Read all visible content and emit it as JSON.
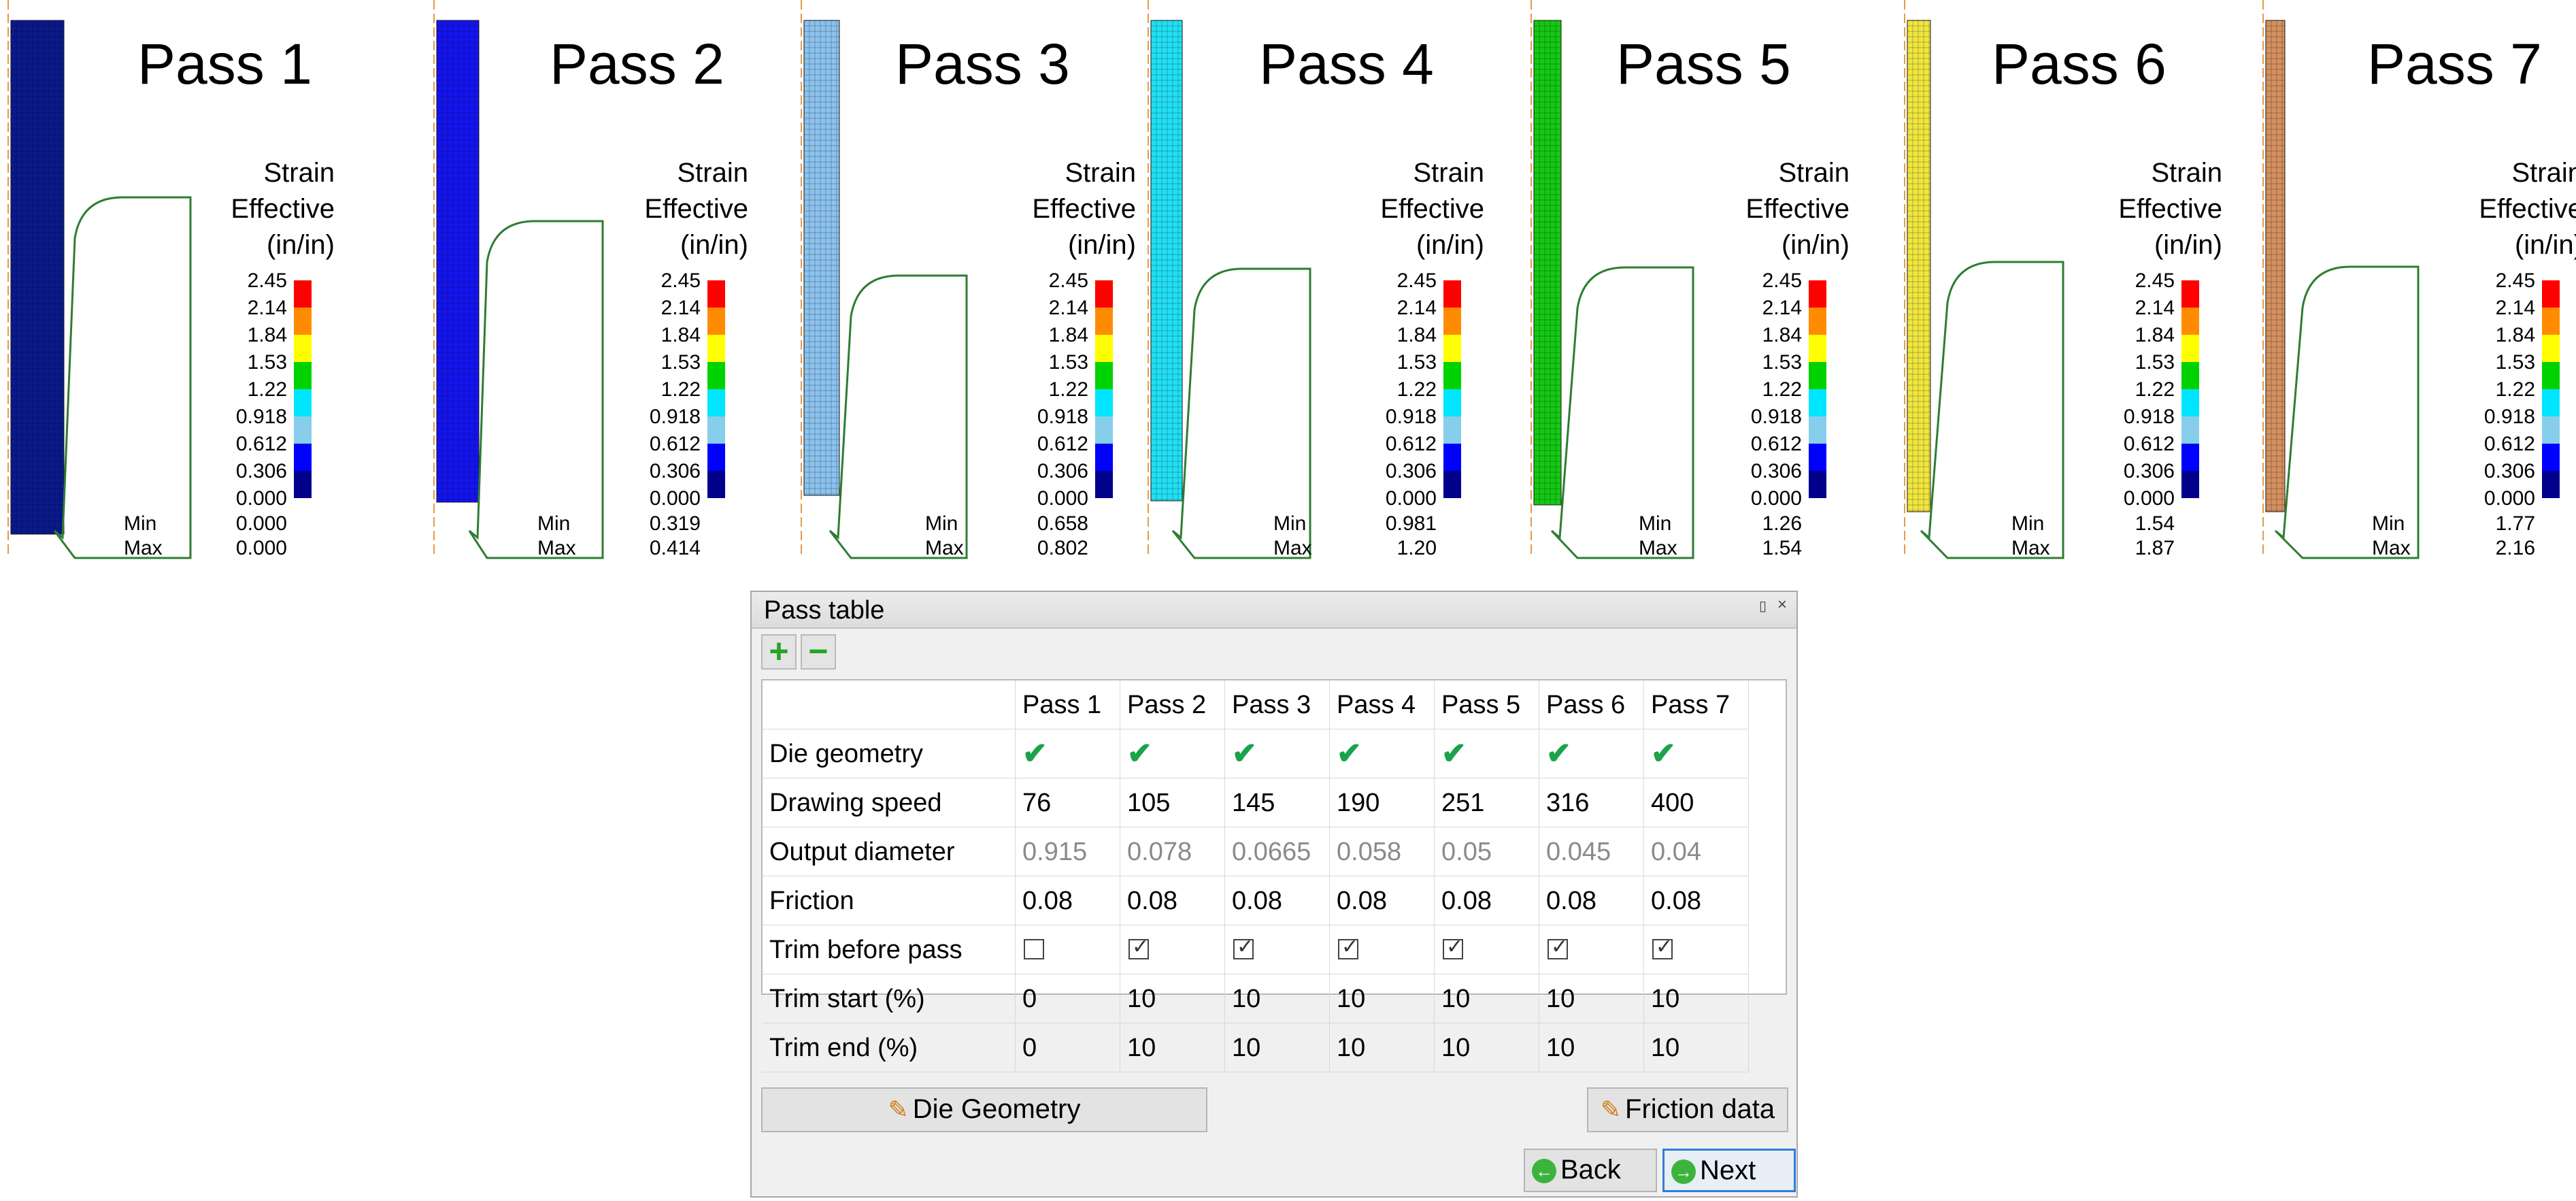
{
  "legend": {
    "title_lines": [
      "Strain",
      "Effective",
      "(in/in)"
    ],
    "ticks": [
      "2.45",
      "2.14",
      "1.84",
      "1.53",
      "1.22",
      "0.918",
      "0.612",
      "0.306",
      "0.000"
    ],
    "band_colors": [
      "#ff0000",
      "#ff8c00",
      "#ffff00",
      "#00d200",
      "#00e5ff",
      "#87ceeb",
      "#0000ff",
      "#00008b"
    ],
    "min_label": "Min",
    "max_label": "Max"
  },
  "passes": [
    {
      "title": "Pass 1",
      "min": "0.000",
      "max": "0.000",
      "mesh_color": "#0a1a8c"
    },
    {
      "title": "Pass 2",
      "min": "0.319",
      "max": "0.414",
      "mesh_color": "#1414f0"
    },
    {
      "title": "Pass 3",
      "min": "0.658",
      "max": "0.802",
      "mesh_color": "#8cc2ee"
    },
    {
      "title": "Pass 4",
      "min": "0.981",
      "max": "1.20",
      "mesh_color": "#22e0f4"
    },
    {
      "title": "Pass 5",
      "min": "1.26",
      "max": "1.54",
      "mesh_color": "#14c814"
    },
    {
      "title": "Pass 6",
      "min": "1.54",
      "max": "1.87",
      "mesh_color": "#f0e640"
    },
    {
      "title": "Pass 7",
      "min": "1.77",
      "max": "2.16",
      "mesh_color": "#d49060"
    }
  ],
  "dialog": {
    "title": "Pass table",
    "pin_icon": "pin-icon",
    "close_icon": "close-icon",
    "add_icon": "plus-icon",
    "remove_icon": "minus-icon",
    "columns": [
      "Pass 1",
      "Pass 2",
      "Pass 3",
      "Pass 4",
      "Pass 5",
      "Pass 6",
      "Pass 7"
    ],
    "rows": {
      "die_geometry": {
        "label": "Die geometry",
        "values": [
          true,
          true,
          true,
          true,
          true,
          true,
          true
        ]
      },
      "drawing_speed": {
        "label": "Drawing speed",
        "values": [
          "76",
          "105",
          "145",
          "190",
          "251",
          "316",
          "400"
        ]
      },
      "output_diameter": {
        "label": "Output diameter",
        "values": [
          "0.915",
          "0.078",
          "0.0665",
          "0.058",
          "0.05",
          "0.045",
          "0.04"
        ]
      },
      "friction": {
        "label": "Friction",
        "values": [
          "0.08",
          "0.08",
          "0.08",
          "0.08",
          "0.08",
          "0.08",
          "0.08"
        ]
      },
      "trim_before_pass": {
        "label": "Trim before pass",
        "values": [
          false,
          true,
          true,
          true,
          true,
          true,
          true
        ]
      },
      "trim_start": {
        "label": "Trim start (%)",
        "values": [
          "0",
          "10",
          "10",
          "10",
          "10",
          "10",
          "10"
        ]
      },
      "trim_end": {
        "label": "Trim end (%)",
        "values": [
          "0",
          "10",
          "10",
          "10",
          "10",
          "10",
          "10"
        ]
      }
    },
    "die_geometry_button": "Die Geometry",
    "friction_data_button": "Friction data",
    "back_button": "Back",
    "next_button": "Next",
    "accent_color": "#1aa34a"
  }
}
